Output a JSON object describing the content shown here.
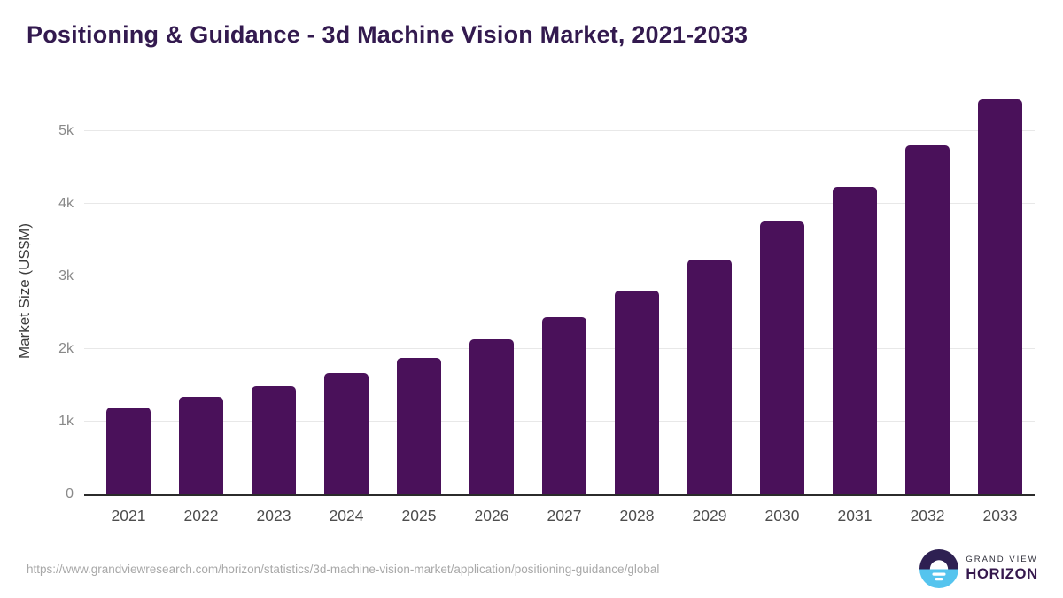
{
  "title": "Positioning & Guidance - 3d Machine Vision Market, 2021-2033",
  "colors": {
    "bar": "#4a115a",
    "title_text": "#331a4f",
    "gridline": "#e8e8e8",
    "axis_line": "#2b2b2b",
    "y_tick_text": "#898989",
    "x_tick_text": "#4d4d4d",
    "url_text": "#a8a8a8",
    "logo_purple": "#2e2052",
    "logo_blue": "#55c4ee",
    "logo_horizon_text": "#35184d"
  },
  "chart_data": {
    "type": "bar",
    "title": "Positioning & Guidance - 3d Machine Vision Market, 2021-2033",
    "categories": [
      "2021",
      "2022",
      "2023",
      "2024",
      "2025",
      "2026",
      "2027",
      "2028",
      "2029",
      "2030",
      "2031",
      "2032",
      "2033"
    ],
    "values": [
      1200,
      1335,
      1485,
      1665,
      1875,
      2130,
      2435,
      2800,
      3230,
      3750,
      4230,
      4795,
      5435
    ],
    "xlabel": "",
    "ylabel": "Market Size (US$M)",
    "y_ticks": [
      {
        "label": "0",
        "value": 0
      },
      {
        "label": "1k",
        "value": 1000
      },
      {
        "label": "2k",
        "value": 2000
      },
      {
        "label": "3k",
        "value": 3000
      },
      {
        "label": "4k",
        "value": 4000
      },
      {
        "label": "5k",
        "value": 5000
      }
    ],
    "ylim": [
      0,
      5580
    ],
    "grid": true,
    "legend": false
  },
  "footer": {
    "source_url": "https://www.grandviewresearch.com/horizon/statistics/3d-machine-vision-market/application/positioning-guidance/global",
    "logo": {
      "line1": "GRAND VIEW",
      "line2": "HORIZON"
    }
  }
}
